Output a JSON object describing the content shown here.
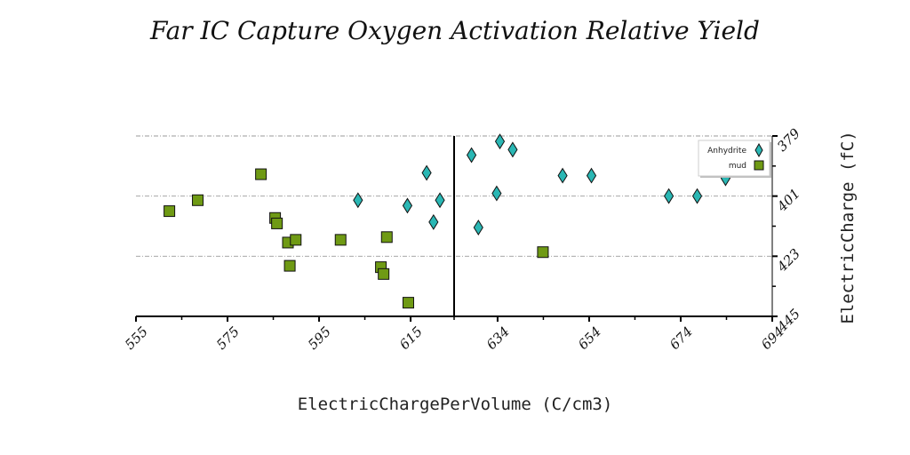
{
  "colors": {
    "anhydrite": "#2ab7b4",
    "mud": "#6f9a14",
    "grid": "#9a9a9a",
    "axis": "#000000"
  },
  "chart_data": {
    "type": "scatter",
    "title": "Far IC Capture Oxygen Activation Relative Yield",
    "xlabel": "ElectricChargePerVolume (C/cm3)",
    "ylabel": "ElectricCharge (fC)",
    "xlim": [
      555,
      694
    ],
    "ylim": [
      445,
      379
    ],
    "y_axis_position": "right",
    "y_inverted": true,
    "x_ticks": [
      "555",
      "575",
      "595",
      "615",
      "634",
      "654",
      "674",
      "694"
    ],
    "y_ticks": [
      "379",
      "401",
      "423",
      "445"
    ],
    "grid": "horizontal dashed",
    "legend_position": "top-right",
    "vertical_reference_line_x": 624.5,
    "series": [
      {
        "name": "Anhydrite",
        "marker": "diamond",
        "points": [
          [
            634.5,
            381
          ],
          [
            637.3,
            384
          ],
          [
            628.3,
            386
          ],
          [
            618.5,
            392.5
          ],
          [
            648.2,
            393.5
          ],
          [
            654.5,
            393.5
          ],
          [
            683.8,
            394.5
          ],
          [
            633.8,
            400
          ],
          [
            603.5,
            402.5
          ],
          [
            621.4,
            402.5
          ],
          [
            614.3,
            404.5
          ],
          [
            677.6,
            401
          ],
          [
            671.4,
            401
          ],
          [
            620.0,
            410.5
          ],
          [
            629.8,
            412.5
          ]
        ]
      },
      {
        "name": "mud",
        "marker": "square",
        "points": [
          [
            582.3,
            393
          ],
          [
            568.5,
            402.5
          ],
          [
            562.3,
            406.5
          ],
          [
            585.4,
            409
          ],
          [
            585.8,
            411
          ],
          [
            588.2,
            418
          ],
          [
            589.9,
            417
          ],
          [
            599.7,
            417
          ],
          [
            609.8,
            416
          ],
          [
            643.9,
            421.5
          ],
          [
            588.6,
            426.5
          ],
          [
            608.5,
            427
          ],
          [
            609.1,
            429.5
          ],
          [
            614.5,
            440
          ]
        ]
      }
    ]
  }
}
